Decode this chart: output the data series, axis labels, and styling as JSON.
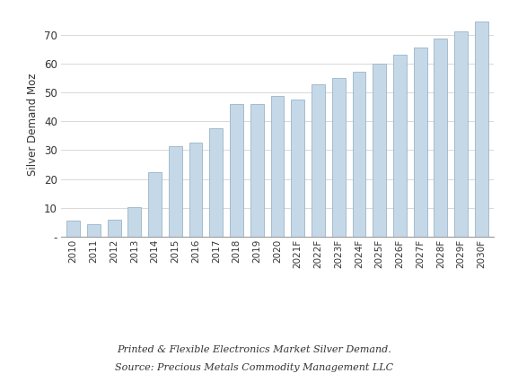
{
  "categories": [
    "2010",
    "2011",
    "2012",
    "2013",
    "2014",
    "2015",
    "2016",
    "2017",
    "2018",
    "2019",
    "2020",
    "2021F",
    "2022F",
    "2023F",
    "2024F",
    "2025F",
    "2026F",
    "2027F",
    "2028F",
    "2029F",
    "2030F"
  ],
  "values": [
    5.5,
    4.5,
    6.0,
    10.2,
    22.5,
    31.5,
    32.5,
    37.5,
    46.0,
    46.0,
    48.8,
    47.5,
    52.8,
    55.0,
    57.0,
    60.0,
    63.0,
    65.5,
    68.5,
    71.0,
    74.5
  ],
  "bar_color": "#c5d8e8",
  "bar_edge_color": "#9ab5c8",
  "ylabel": "Silver Demand Moz",
  "ylim": [
    0,
    78
  ],
  "yticks": [
    0,
    10,
    20,
    30,
    40,
    50,
    60,
    70
  ],
  "ytick_labels": [
    "-",
    "10",
    "20",
    "30",
    "40",
    "50",
    "60",
    "70"
  ],
  "caption_line1": "Printed & Flexible Electronics Market Silver Demand.",
  "caption_line2": "Source: Precious Metals Commodity Management LLC",
  "background_color": "#ffffff",
  "grid_color": "#d8d8d8",
  "bar_linewidth": 0.6,
  "bar_width": 0.65
}
